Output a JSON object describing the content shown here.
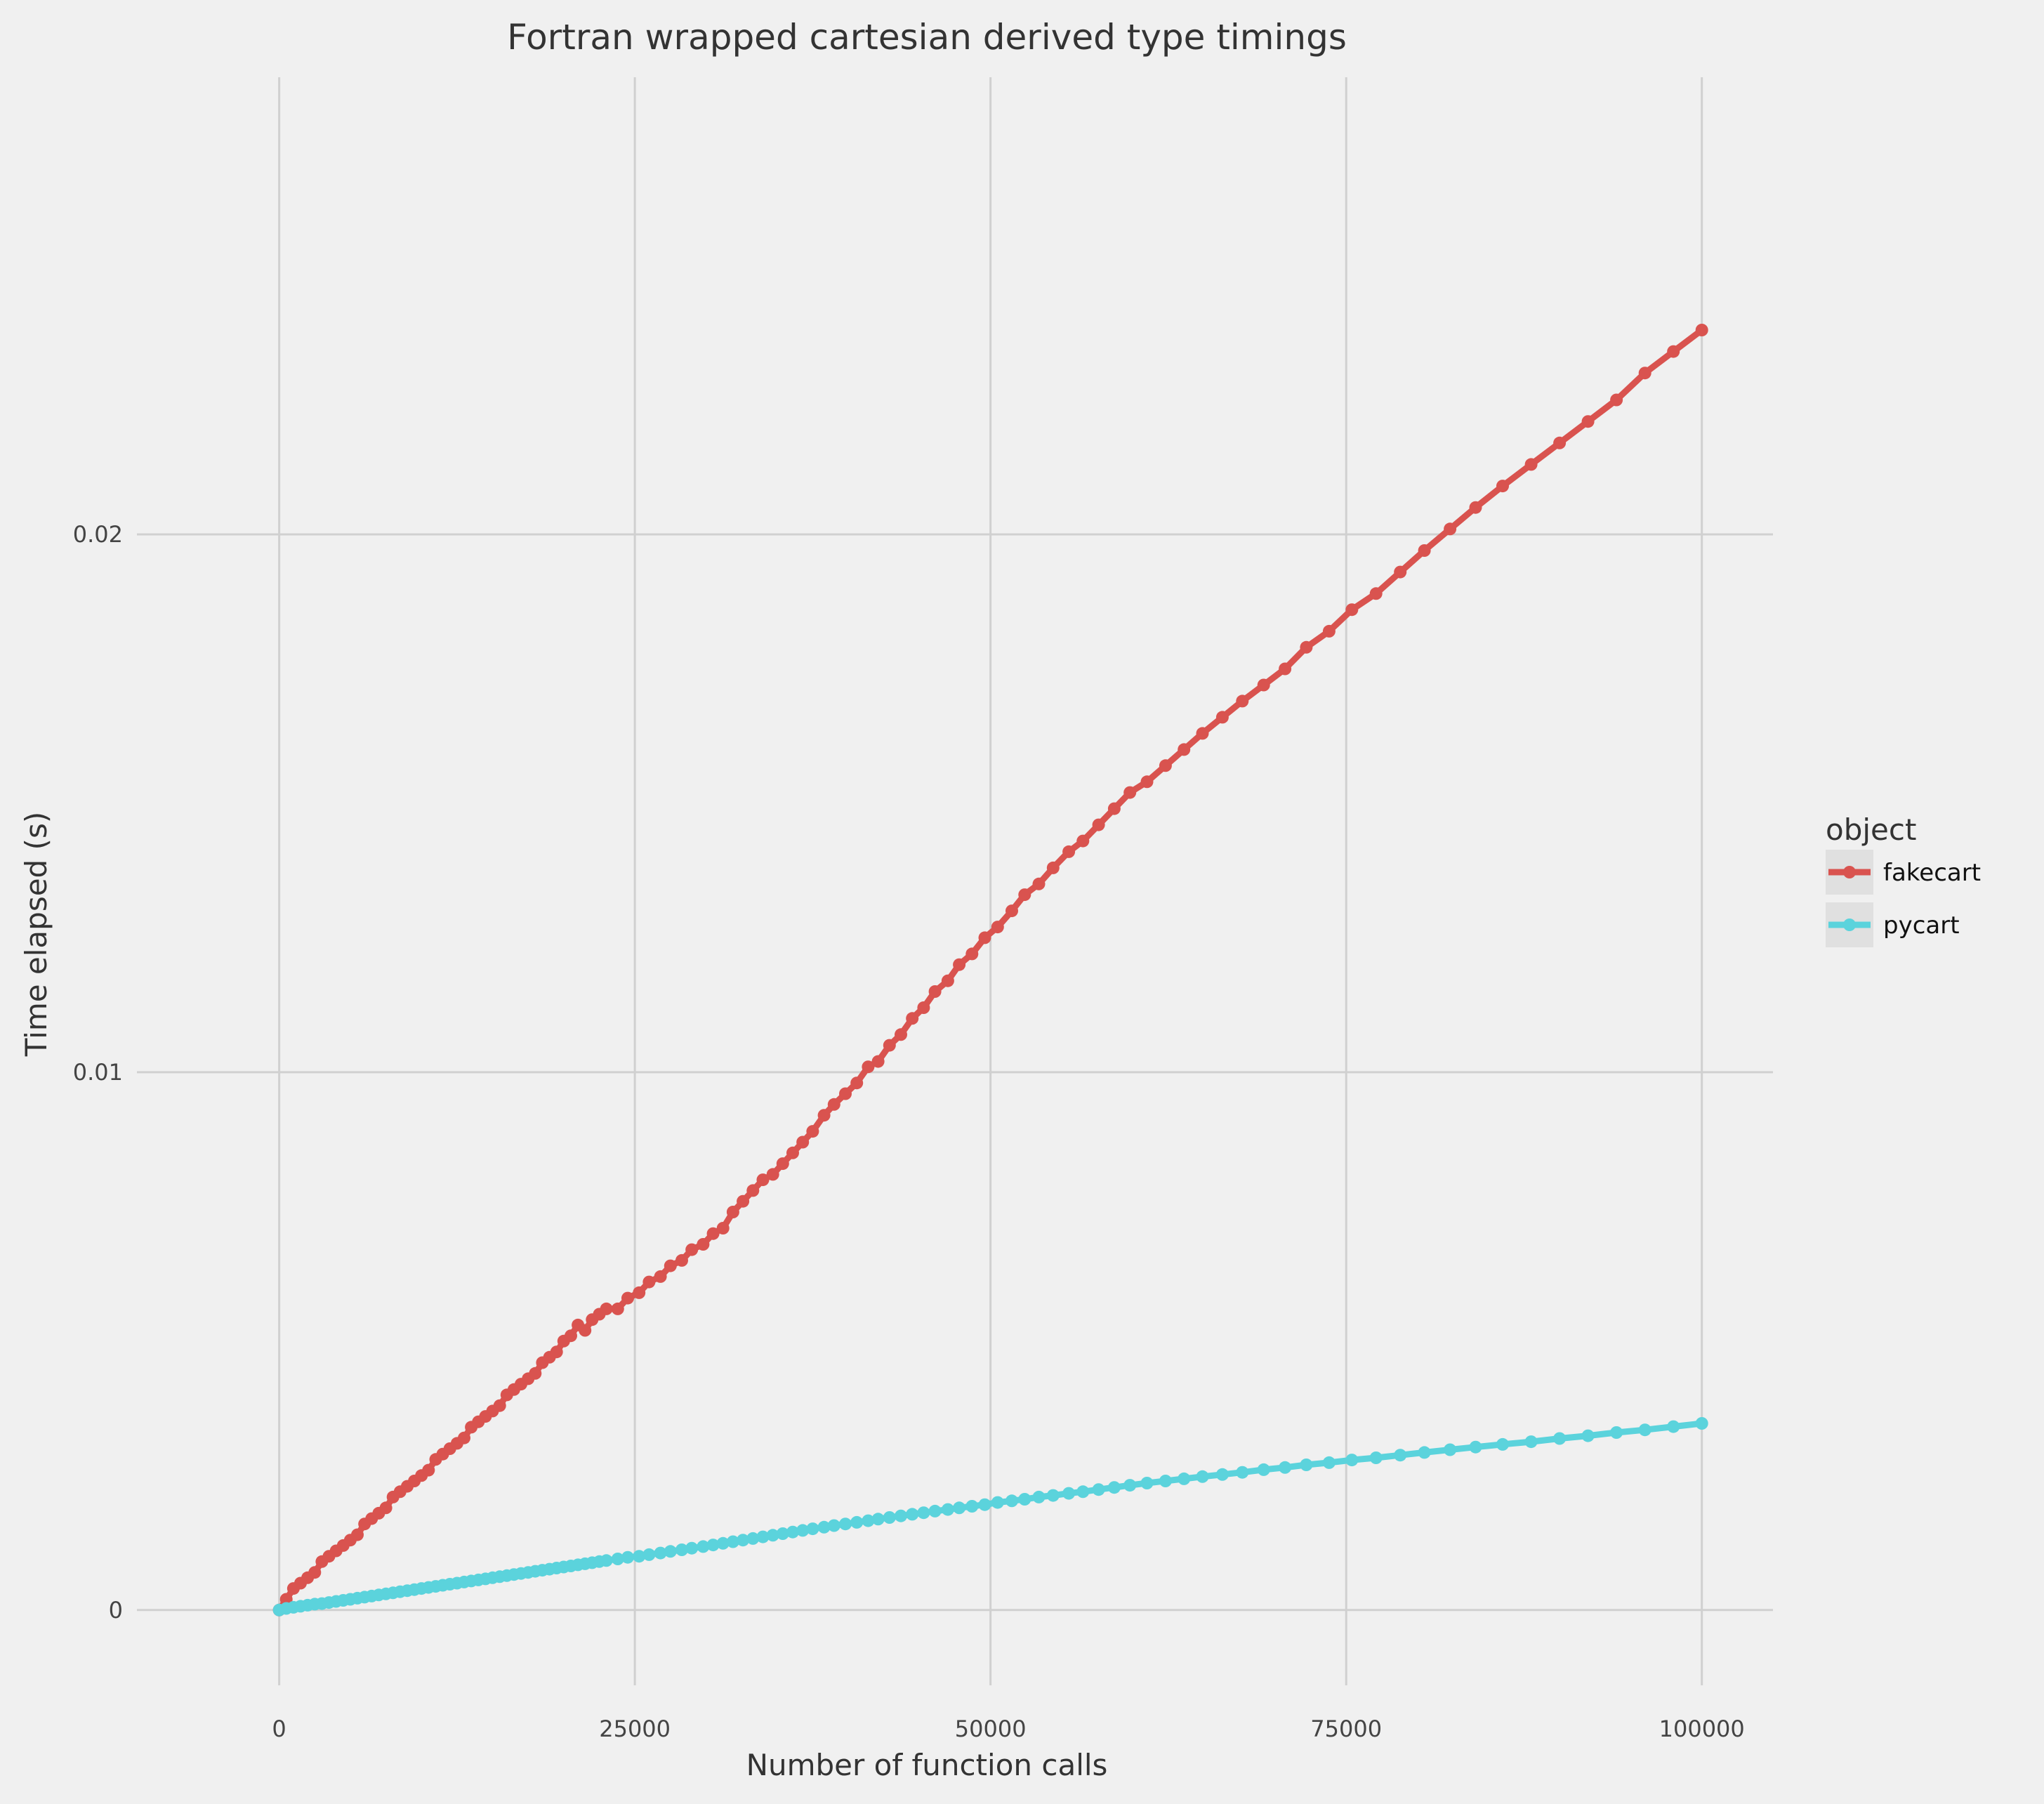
{
  "chart_data": {
    "type": "line",
    "title": "Fortran wrapped cartesian derived type timings",
    "xlabel": "Number of function calls",
    "ylabel": "Time elapsed (s)",
    "xlim": [
      -10000,
      105000
    ],
    "ylim": [
      -0.0014,
      0.0285
    ],
    "xticks": [
      0,
      25000,
      50000,
      75000,
      100000
    ],
    "xtick_labels": [
      "0",
      "25000",
      "50000",
      "75000",
      "100000"
    ],
    "yticks": [
      0,
      0.01,
      0.02
    ],
    "ytick_labels": [
      "0",
      "0.01",
      "0.02"
    ],
    "grid": true,
    "legend": {
      "title": "object",
      "placement": "right"
    },
    "series": [
      {
        "name": "fakecart",
        "color": "#d9534f",
        "points": [
          [
            0,
            0
          ],
          [
            500,
            0.0002
          ],
          [
            1000,
            0.0004
          ],
          [
            1500,
            0.0005
          ],
          [
            2000,
            0.0006
          ],
          [
            2500,
            0.0007
          ],
          [
            3000,
            0.0009
          ],
          [
            3500,
            0.001
          ],
          [
            4000,
            0.0011
          ],
          [
            4500,
            0.0012
          ],
          [
            5000,
            0.0013
          ],
          [
            5500,
            0.0014
          ],
          [
            6000,
            0.0016
          ],
          [
            6500,
            0.0017
          ],
          [
            7000,
            0.0018
          ],
          [
            7500,
            0.0019
          ],
          [
            8000,
            0.0021
          ],
          [
            8500,
            0.0022
          ],
          [
            9000,
            0.0023
          ],
          [
            9500,
            0.0024
          ],
          [
            10000,
            0.0025
          ],
          [
            10500,
            0.0026
          ],
          [
            11000,
            0.0028
          ],
          [
            11500,
            0.0029
          ],
          [
            12000,
            0.003
          ],
          [
            12500,
            0.0031
          ],
          [
            13000,
            0.0032
          ],
          [
            13500,
            0.0034
          ],
          [
            14000,
            0.0035
          ],
          [
            14500,
            0.0036
          ],
          [
            15000,
            0.0037
          ],
          [
            15500,
            0.0038
          ],
          [
            16000,
            0.004
          ],
          [
            16500,
            0.0041
          ],
          [
            17000,
            0.0042
          ],
          [
            17500,
            0.0043
          ],
          [
            18000,
            0.0044
          ],
          [
            18500,
            0.0046
          ],
          [
            19000,
            0.0047
          ],
          [
            19500,
            0.0048
          ],
          [
            20000,
            0.005
          ],
          [
            20500,
            0.0051
          ],
          [
            21000,
            0.0053
          ],
          [
            21500,
            0.0052
          ],
          [
            22000,
            0.0054
          ],
          [
            22500,
            0.0055
          ],
          [
            23000,
            0.0056
          ],
          [
            23800,
            0.0056
          ],
          [
            24500,
            0.0058
          ],
          [
            25300,
            0.0059
          ],
          [
            26000,
            0.0061
          ],
          [
            26800,
            0.0062
          ],
          [
            27500,
            0.0064
          ],
          [
            28300,
            0.0065
          ],
          [
            29000,
            0.0067
          ],
          [
            29800,
            0.0068
          ],
          [
            30500,
            0.007
          ],
          [
            31200,
            0.0071
          ],
          [
            31900,
            0.0074
          ],
          [
            32600,
            0.0076
          ],
          [
            33300,
            0.0078
          ],
          [
            34000,
            0.008
          ],
          [
            34700,
            0.0081
          ],
          [
            35400,
            0.0083
          ],
          [
            36100,
            0.0085
          ],
          [
            36800,
            0.0087
          ],
          [
            37500,
            0.0089
          ],
          [
            38300,
            0.0092
          ],
          [
            39000,
            0.0094
          ],
          [
            39800,
            0.0096
          ],
          [
            40600,
            0.0098
          ],
          [
            41400,
            0.0101
          ],
          [
            42100,
            0.0102
          ],
          [
            42900,
            0.0105
          ],
          [
            43700,
            0.0107
          ],
          [
            44500,
            0.011
          ],
          [
            45300,
            0.0112
          ],
          [
            46100,
            0.0115
          ],
          [
            47000,
            0.0117
          ],
          [
            47800,
            0.012
          ],
          [
            48700,
            0.0122
          ],
          [
            49600,
            0.0125
          ],
          [
            50500,
            0.0127
          ],
          [
            51500,
            0.013
          ],
          [
            52400,
            0.0133
          ],
          [
            53400,
            0.0135
          ],
          [
            54400,
            0.0138
          ],
          [
            55500,
            0.0141
          ],
          [
            56500,
            0.0143
          ],
          [
            57600,
            0.0146
          ],
          [
            58700,
            0.0149
          ],
          [
            59800,
            0.0152
          ],
          [
            61000,
            0.0154
          ],
          [
            62300,
            0.0157
          ],
          [
            63600,
            0.016
          ],
          [
            64900,
            0.0163
          ],
          [
            66300,
            0.0166
          ],
          [
            67700,
            0.0169
          ],
          [
            69200,
            0.0172
          ],
          [
            70700,
            0.0175
          ],
          [
            72200,
            0.0179
          ],
          [
            73800,
            0.0182
          ],
          [
            75400,
            0.0186
          ],
          [
            77100,
            0.0189
          ],
          [
            78800,
            0.0193
          ],
          [
            80500,
            0.0197
          ],
          [
            82300,
            0.0201
          ],
          [
            84100,
            0.0205
          ],
          [
            86000,
            0.0209
          ],
          [
            88000,
            0.0213
          ],
          [
            90000,
            0.0217
          ],
          [
            92000,
            0.0221
          ],
          [
            94000,
            0.0225
          ],
          [
            96000,
            0.023
          ],
          [
            98000,
            0.0234
          ],
          [
            100000,
            0.0238
          ]
        ]
      },
      {
        "name": "pycart",
        "color": "#5bd3dc",
        "points": [
          [
            0,
            0
          ],
          [
            500,
            3e-05
          ],
          [
            1000,
            5e-05
          ],
          [
            1500,
            7e-05
          ],
          [
            2000,
            9e-05
          ],
          [
            2500,
            0.00011
          ],
          [
            3000,
            0.00012
          ],
          [
            3500,
            0.00014
          ],
          [
            4000,
            0.00016
          ],
          [
            4500,
            0.00018
          ],
          [
            5000,
            0.0002
          ],
          [
            5500,
            0.00022
          ],
          [
            6000,
            0.00024
          ],
          [
            6500,
            0.00026
          ],
          [
            7000,
            0.00028
          ],
          [
            7500,
            0.0003
          ],
          [
            8000,
            0.00032
          ],
          [
            8500,
            0.00034
          ],
          [
            9000,
            0.00036
          ],
          [
            9500,
            0.00038
          ],
          [
            10000,
            0.0004
          ],
          [
            10500,
            0.00042
          ],
          [
            11000,
            0.00044
          ],
          [
            11500,
            0.00046
          ],
          [
            12000,
            0.00048
          ],
          [
            12500,
            0.0005
          ],
          [
            13000,
            0.00052
          ],
          [
            13500,
            0.00054
          ],
          [
            14000,
            0.00056
          ],
          [
            14500,
            0.00058
          ],
          [
            15000,
            0.0006
          ],
          [
            15500,
            0.00062
          ],
          [
            16000,
            0.00064
          ],
          [
            16500,
            0.00066
          ],
          [
            17000,
            0.00068
          ],
          [
            17500,
            0.0007
          ],
          [
            18000,
            0.00072
          ],
          [
            18500,
            0.00074
          ],
          [
            19000,
            0.00076
          ],
          [
            19500,
            0.00078
          ],
          [
            20000,
            0.0008
          ],
          [
            20500,
            0.00082
          ],
          [
            21000,
            0.00084
          ],
          [
            21500,
            0.00086
          ],
          [
            22000,
            0.00088
          ],
          [
            22500,
            0.0009
          ],
          [
            23000,
            0.00092
          ],
          [
            23800,
            0.00095
          ],
          [
            24500,
            0.00098
          ],
          [
            25300,
            0.001
          ],
          [
            26000,
            0.00103
          ],
          [
            26800,
            0.00106
          ],
          [
            27500,
            0.00109
          ],
          [
            28300,
            0.00112
          ],
          [
            29000,
            0.00115
          ],
          [
            29800,
            0.00118
          ],
          [
            30500,
            0.00121
          ],
          [
            31200,
            0.00124
          ],
          [
            31900,
            0.00127
          ],
          [
            32600,
            0.0013
          ],
          [
            33300,
            0.00133
          ],
          [
            34000,
            0.00136
          ],
          [
            34700,
            0.00139
          ],
          [
            35400,
            0.00142
          ],
          [
            36100,
            0.00145
          ],
          [
            36800,
            0.00148
          ],
          [
            37500,
            0.00151
          ],
          [
            38300,
            0.00154
          ],
          [
            39000,
            0.00157
          ],
          [
            39800,
            0.0016
          ],
          [
            40600,
            0.00163
          ],
          [
            41400,
            0.00166
          ],
          [
            42100,
            0.00169
          ],
          [
            42900,
            0.00172
          ],
          [
            43700,
            0.00175
          ],
          [
            44500,
            0.00178
          ],
          [
            45300,
            0.00181
          ],
          [
            46100,
            0.00184
          ],
          [
            47000,
            0.00187
          ],
          [
            47800,
            0.0019
          ],
          [
            48700,
            0.00193
          ],
          [
            49600,
            0.00196
          ],
          [
            50500,
            0.002
          ],
          [
            51500,
            0.00203
          ],
          [
            52400,
            0.00206
          ],
          [
            53400,
            0.0021
          ],
          [
            54400,
            0.00213
          ],
          [
            55500,
            0.00217
          ],
          [
            56500,
            0.0022
          ],
          [
            57600,
            0.00224
          ],
          [
            58700,
            0.00228
          ],
          [
            59800,
            0.00232
          ],
          [
            61000,
            0.00236
          ],
          [
            62300,
            0.0024
          ],
          [
            63600,
            0.00244
          ],
          [
            64900,
            0.00248
          ],
          [
            66300,
            0.00252
          ],
          [
            67700,
            0.00256
          ],
          [
            69200,
            0.00261
          ],
          [
            70700,
            0.00265
          ],
          [
            72200,
            0.0027
          ],
          [
            73800,
            0.00274
          ],
          [
            75400,
            0.00279
          ],
          [
            77100,
            0.00283
          ],
          [
            78800,
            0.00288
          ],
          [
            80500,
            0.00293
          ],
          [
            82300,
            0.00298
          ],
          [
            84100,
            0.00303
          ],
          [
            86000,
            0.00308
          ],
          [
            88000,
            0.00313
          ],
          [
            90000,
            0.00319
          ],
          [
            92000,
            0.00324
          ],
          [
            94000,
            0.0033
          ],
          [
            96000,
            0.00335
          ],
          [
            98000,
            0.00341
          ],
          [
            100000,
            0.00347
          ]
        ]
      }
    ]
  }
}
